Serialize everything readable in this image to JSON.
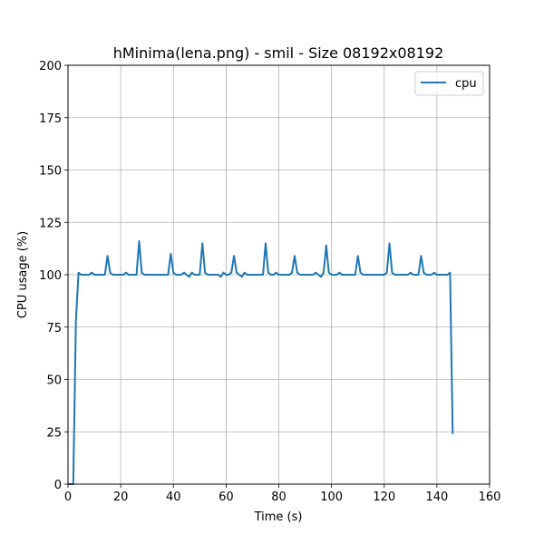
{
  "chart_data": {
    "type": "line",
    "title": "hMinima(lena.png) - smil - Size 08192x08192",
    "xlabel": "Time (s)",
    "ylabel": "CPU usage (%)",
    "xlim": [
      0,
      160
    ],
    "ylim": [
      0,
      200
    ],
    "xticks": [
      0,
      20,
      40,
      60,
      80,
      100,
      120,
      140,
      160
    ],
    "yticks": [
      0,
      25,
      50,
      75,
      100,
      125,
      150,
      175,
      200
    ],
    "grid": true,
    "legend_position": "top-right",
    "series": [
      {
        "name": "cpu",
        "color": "#1f77b4",
        "x": [
          0,
          1,
          2,
          3,
          4,
          5,
          6,
          7,
          8,
          9,
          10,
          11,
          12,
          13,
          14,
          15,
          16,
          17,
          18,
          19,
          20,
          21,
          22,
          23,
          24,
          25,
          26,
          27,
          28,
          29,
          30,
          31,
          32,
          33,
          34,
          35,
          36,
          37,
          38,
          39,
          40,
          41,
          42,
          43,
          44,
          45,
          46,
          47,
          48,
          49,
          50,
          51,
          52,
          53,
          54,
          55,
          56,
          57,
          58,
          59,
          60,
          61,
          62,
          63,
          64,
          65,
          66,
          67,
          68,
          69,
          70,
          71,
          72,
          73,
          74,
          75,
          76,
          77,
          78,
          79,
          80,
          81,
          82,
          83,
          84,
          85,
          86,
          87,
          88,
          89,
          90,
          91,
          92,
          93,
          94,
          95,
          96,
          97,
          98,
          99,
          100,
          101,
          102,
          103,
          104,
          105,
          106,
          107,
          108,
          109,
          110,
          111,
          112,
          113,
          114,
          115,
          116,
          117,
          118,
          119,
          120,
          121,
          122,
          123,
          124,
          125,
          126,
          127,
          128,
          129,
          130,
          131,
          132,
          133,
          134,
          135,
          136,
          137,
          138,
          139,
          140,
          141,
          142,
          143,
          144,
          145,
          146
        ],
        "values": [
          0,
          0,
          0,
          78,
          101,
          100,
          100,
          100,
          100,
          101,
          100,
          100,
          100,
          100,
          100,
          109,
          101,
          100,
          100,
          100,
          100,
          100,
          101,
          100,
          100,
          100,
          100,
          116,
          101,
          100,
          100,
          100,
          100,
          100,
          100,
          100,
          100,
          100,
          100,
          110,
          101,
          100,
          100,
          100,
          101,
          100,
          99,
          101,
          100,
          100,
          100,
          115,
          101,
          100,
          100,
          100,
          100,
          100,
          99,
          101,
          100,
          100,
          101,
          109,
          101,
          100,
          99,
          101,
          100,
          100,
          100,
          100,
          100,
          100,
          100,
          115,
          101,
          100,
          100,
          101,
          100,
          100,
          100,
          100,
          100,
          101,
          109,
          101,
          100,
          100,
          100,
          100,
          100,
          100,
          101,
          100,
          99,
          101,
          114,
          101,
          100,
          100,
          100,
          101,
          100,
          100,
          100,
          100,
          100,
          100,
          109,
          101,
          100,
          100,
          100,
          100,
          100,
          100,
          100,
          100,
          100,
          101,
          115,
          101,
          100,
          100,
          100,
          100,
          100,
          100,
          101,
          100,
          100,
          100,
          109,
          101,
          100,
          100,
          100,
          101,
          100,
          100,
          100,
          100,
          100,
          101,
          24
        ]
      }
    ]
  }
}
